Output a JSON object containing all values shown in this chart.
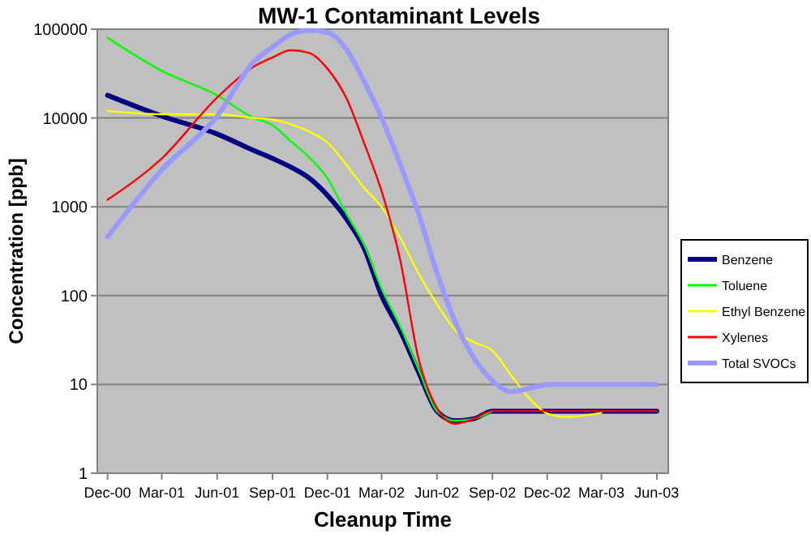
{
  "chart_data": {
    "type": "line",
    "title": "MW-1 Contaminant Levels",
    "xlabel": "Cleanup Time",
    "ylabel": "Concentration [ppb]",
    "x": [
      "2000-12",
      "2001-03",
      "2001-06",
      "2001-08",
      "2001-09",
      "2001-10",
      "2001-11",
      "2001-12",
      "2002-01",
      "2002-02",
      "2002-03",
      "2002-04",
      "2002-05",
      "2002-06",
      "2002-07",
      "2002-08",
      "2002-09",
      "2002-10",
      "2002-11",
      "2002-12",
      "2003-01",
      "2003-03",
      "2003-06"
    ],
    "series": [
      {
        "name": "Benzene",
        "color": "#000080",
        "values": [
          18000,
          10500,
          6600,
          4300,
          3500,
          2800,
          2100,
          1350,
          740,
          330,
          100,
          40,
          14,
          5,
          3.9,
          4.1,
          5,
          5,
          5,
          5,
          5,
          5,
          5
        ]
      },
      {
        "name": "Toluene",
        "color": "#00ff00",
        "values": [
          80000,
          34000,
          18000,
          10000,
          8300,
          5500,
          3600,
          2100,
          850,
          360,
          120,
          45,
          15,
          5,
          3.9,
          4.1,
          5,
          null,
          null,
          null,
          null,
          null,
          null
        ]
      },
      {
        "name": "Ethyl Benzene",
        "color": "#ffff00",
        "values": [
          12000,
          11000,
          11000,
          10000,
          9600,
          8500,
          7000,
          5300,
          3000,
          1600,
          1000,
          450,
          180,
          80,
          41,
          30,
          24,
          13,
          7,
          4.7,
          4.3,
          4.8,
          null
        ]
      },
      {
        "name": "Xylenes",
        "color": "#ff0000",
        "values": [
          1200,
          3500,
          17000,
          38000,
          48000,
          58000,
          54000,
          36000,
          17000,
          5000,
          1500,
          250,
          20,
          5.4,
          3.6,
          4.1,
          5,
          5,
          5,
          5,
          5,
          5,
          5
        ]
      },
      {
        "name": "Total SVOCs",
        "color": "#9999ff",
        "values": [
          460,
          2600,
          10500,
          43000,
          63000,
          87000,
          97000,
          92000,
          60000,
          25000,
          10000,
          3000,
          850,
          180,
          51,
          20,
          11,
          8.3,
          9,
          10,
          10,
          10,
          10
        ]
      }
    ],
    "xlim": [
      "2000-11-14",
      "2003-06-20"
    ],
    "xticks": [
      {
        "value": "2000-12-01",
        "label": "Dec-00"
      },
      {
        "value": "2001-03-01",
        "label": "Mar-01"
      },
      {
        "value": "2001-06-01",
        "label": "Jun-01"
      },
      {
        "value": "2001-09-01",
        "label": "Sep-01"
      },
      {
        "value": "2001-12-01",
        "label": "Dec-01"
      },
      {
        "value": "2002-03-01",
        "label": "Mar-02"
      },
      {
        "value": "2002-06-01",
        "label": "Jun-02"
      },
      {
        "value": "2002-09-01",
        "label": "Sep-02"
      },
      {
        "value": "2002-12-01",
        "label": "Dec-02"
      },
      {
        "value": "2003-03-01",
        "label": "Mar-03"
      },
      {
        "value": "2003-06-01",
        "label": "Jun-03"
      }
    ],
    "ylim": [
      1,
      100000
    ],
    "yticks": [
      1,
      10,
      100,
      1000,
      10000,
      100000
    ],
    "log": true,
    "grid": "y",
    "legend": "right",
    "marker": "none",
    "line_style": "solid"
  }
}
